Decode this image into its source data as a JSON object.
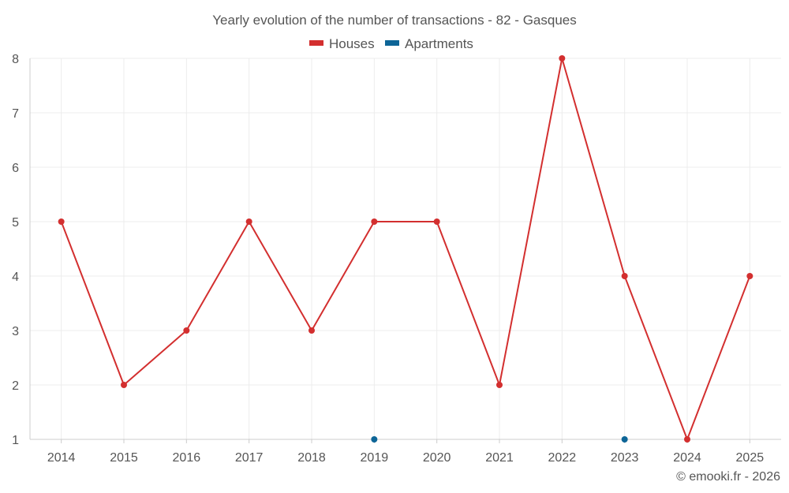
{
  "chart_data": {
    "type": "line",
    "title": "Yearly evolution of the number of transactions - 82 - Gasques",
    "categories": [
      "2014",
      "2015",
      "2016",
      "2017",
      "2018",
      "2019",
      "2020",
      "2021",
      "2022",
      "2023",
      "2024",
      "2025"
    ],
    "series": [
      {
        "name": "Houses",
        "color": "#d32f2f",
        "values": [
          5,
          2,
          3,
          5,
          3,
          5,
          5,
          2,
          8,
          4,
          1,
          4
        ],
        "connected": true
      },
      {
        "name": "Apartments",
        "color": "#0d6597",
        "values": [
          null,
          null,
          null,
          null,
          null,
          1,
          null,
          null,
          null,
          1,
          null,
          null
        ],
        "connected": false
      }
    ],
    "ylim": [
      1,
      8
    ],
    "yticks": [
      1,
      2,
      3,
      4,
      5,
      6,
      7,
      8
    ],
    "xlabel": "",
    "ylabel": "",
    "grid": true,
    "legend_position": "top-center"
  },
  "credit": "© emooki.fr - 2026"
}
